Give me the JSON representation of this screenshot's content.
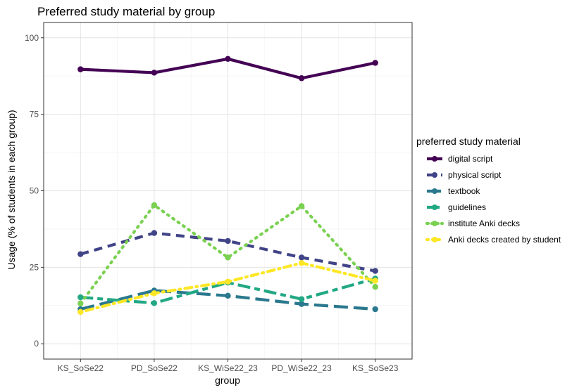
{
  "chart_data": {
    "type": "line",
    "title": "Preferred study material by group",
    "xlabel": "group",
    "ylabel": "Usage (% of students in each group)",
    "categories": [
      "KS_SoSe22",
      "PD_SoSe22",
      "KS_WiSe22_23",
      "PD_WiSe22_23",
      "KS_SoSe23"
    ],
    "ylim": [
      -5,
      105
    ],
    "yticks": [
      0,
      25,
      50,
      75,
      100
    ],
    "grid": true,
    "legend_title": "preferred study material",
    "legend_position": "right",
    "series": [
      {
        "name": "digital script",
        "color": "#440154",
        "dash": "solid",
        "values": [
          89.7,
          88.6,
          93.1,
          86.8,
          91.8
        ]
      },
      {
        "name": "physical script",
        "color": "#414487",
        "dash": "dashed",
        "values": [
          29.3,
          36.2,
          33.6,
          28.2,
          23.8
        ]
      },
      {
        "name": "textbook",
        "color": "#2A788E",
        "dash": "longdash",
        "values": [
          11.3,
          17.4,
          15.7,
          13.0,
          11.3
        ]
      },
      {
        "name": "guidelines",
        "color": "#22A884",
        "dash": "twodash",
        "values": [
          15.2,
          13.3,
          20.0,
          14.6,
          21.3
        ]
      },
      {
        "name": "institute Anki decks",
        "color": "#7AD151",
        "dash": "dotted",
        "values": [
          13.2,
          45.3,
          28.2,
          45.0,
          18.6
        ]
      },
      {
        "name": "Anki decks created by student",
        "color": "#FDE725",
        "dash": "dotdash",
        "values": [
          10.4,
          16.5,
          20.3,
          26.4,
          20.6
        ]
      }
    ]
  }
}
